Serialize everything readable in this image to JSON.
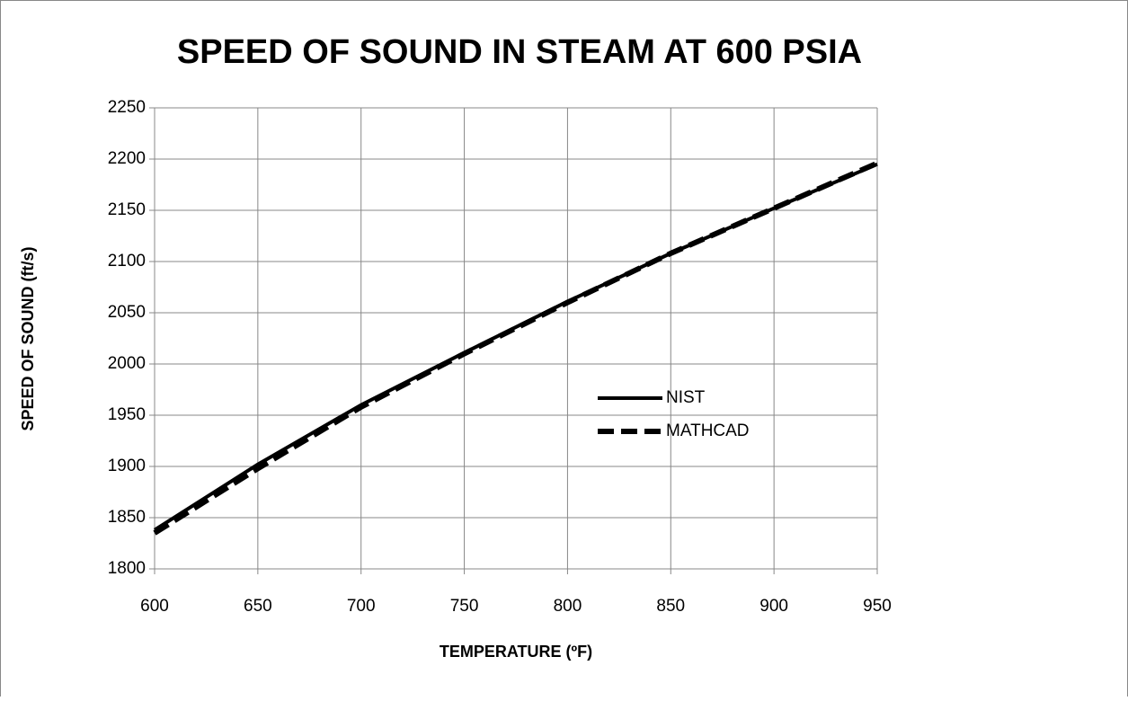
{
  "chart_data": {
    "type": "line",
    "title": "SPEED OF SOUND IN STEAM AT 600 PSIA",
    "x_label": "TEMPERATURE (ºF)",
    "y_label": "SPEED OF SOUND (ft/s)",
    "x": [
      600,
      650,
      700,
      750,
      800,
      850,
      900,
      950
    ],
    "series": [
      {
        "name": "NIST",
        "color": "#000000",
        "dash": false,
        "values": [
          1838,
          1902,
          1960,
          2011,
          2061,
          2108,
          2152,
          2195
        ]
      },
      {
        "name": "MATHCAD",
        "color": "#000000",
        "dash": true,
        "values": [
          1835,
          1898,
          1958,
          2010,
          2060,
          2108,
          2152,
          2196
        ]
      }
    ],
    "xlim": [
      600,
      950
    ],
    "xticks": [
      600,
      650,
      700,
      750,
      800,
      850,
      900,
      950
    ],
    "ylim": [
      1800,
      2250
    ],
    "yticks": [
      1800,
      1850,
      1900,
      1950,
      2000,
      2050,
      2100,
      2150,
      2200,
      2250
    ],
    "grid": true,
    "legend": "center"
  }
}
